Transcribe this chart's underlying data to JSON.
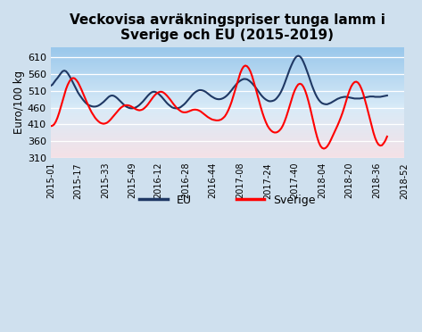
{
  "title": "Veckovisa avräkningspriser tunga lamm i\nSverige och EU (2015-2019)",
  "ylabel": "Euro/100 kg",
  "bg_color": "#cfe0ee",
  "ylim": [
    310,
    640
  ],
  "yticks": [
    310,
    360,
    410,
    460,
    510,
    560,
    610
  ],
  "xtick_labels": [
    "2015-01",
    "2015-17",
    "2015-33",
    "2015-49",
    "2016-12",
    "2016-28",
    "2016-44",
    "2017-08",
    "2017-24",
    "2017-40",
    "2018-04",
    "2018-20",
    "2018-36",
    "2018-52"
  ],
  "xtick_positions": [
    0,
    16,
    32,
    48,
    63,
    79,
    95,
    111,
    127,
    143,
    159,
    175,
    191,
    207
  ],
  "eu_color": "#1f3864",
  "sverige_color": "#ff0000",
  "legend_eu": "EU",
  "legend_sverige": "Sverige",
  "eu_values": [
    525,
    528,
    535,
    542,
    548,
    555,
    562,
    568,
    570,
    568,
    562,
    554,
    545,
    535,
    525,
    515,
    505,
    497,
    490,
    483,
    477,
    472,
    468,
    466,
    464,
    463,
    463,
    464,
    466,
    469,
    473,
    477,
    482,
    487,
    492,
    495,
    496,
    495,
    492,
    488,
    483,
    478,
    473,
    468,
    464,
    461,
    459,
    458,
    458,
    459,
    461,
    464,
    468,
    473,
    478,
    484,
    490,
    496,
    501,
    505,
    507,
    507,
    505,
    502,
    497,
    492,
    486,
    480,
    474,
    469,
    465,
    461,
    459,
    458,
    458,
    459,
    461,
    465,
    469,
    474,
    480,
    486,
    492,
    498,
    503,
    507,
    510,
    512,
    512,
    511,
    509,
    506,
    502,
    498,
    494,
    491,
    488,
    486,
    485,
    485,
    486,
    488,
    491,
    495,
    500,
    506,
    512,
    519,
    525,
    531,
    536,
    540,
    543,
    545,
    545,
    544,
    541,
    537,
    532,
    526,
    520,
    513,
    506,
    499,
    493,
    488,
    484,
    481,
    479,
    479,
    480,
    482,
    486,
    492,
    499,
    508,
    519,
    532,
    546,
    560,
    574,
    586,
    597,
    606,
    612,
    614,
    612,
    606,
    596,
    584,
    570,
    556,
    541,
    526,
    513,
    501,
    491,
    483,
    477,
    473,
    471,
    470,
    470,
    472,
    474,
    477,
    480,
    483,
    486,
    488,
    490,
    491,
    492,
    492,
    491,
    490,
    489,
    488,
    487,
    487,
    487,
    487,
    488,
    489,
    490,
    491,
    492,
    493,
    493,
    493,
    492,
    492,
    492,
    492,
    493,
    494,
    495,
    496
  ],
  "sv_values": [
    405,
    406,
    410,
    418,
    430,
    445,
    462,
    480,
    498,
    515,
    528,
    538,
    545,
    548,
    547,
    542,
    535,
    525,
    514,
    502,
    490,
    478,
    467,
    456,
    446,
    438,
    430,
    424,
    419,
    415,
    413,
    412,
    413,
    415,
    419,
    424,
    430,
    436,
    442,
    448,
    454,
    459,
    463,
    466,
    467,
    467,
    466,
    464,
    461,
    458,
    455,
    453,
    452,
    453,
    455,
    459,
    464,
    470,
    477,
    484,
    491,
    497,
    502,
    505,
    507,
    507,
    505,
    501,
    496,
    490,
    484,
    477,
    470,
    464,
    458,
    454,
    450,
    447,
    446,
    446,
    447,
    449,
    451,
    453,
    454,
    454,
    453,
    451,
    448,
    444,
    440,
    436,
    432,
    429,
    426,
    424,
    423,
    422,
    422,
    423,
    425,
    429,
    434,
    442,
    452,
    464,
    478,
    495,
    512,
    530,
    547,
    562,
    574,
    582,
    585,
    583,
    577,
    567,
    553,
    536,
    518,
    499,
    480,
    462,
    445,
    430,
    417,
    406,
    398,
    392,
    388,
    386,
    386,
    388,
    392,
    398,
    407,
    419,
    433,
    449,
    466,
    483,
    499,
    512,
    522,
    529,
    531,
    529,
    522,
    511,
    496,
    478,
    458,
    436,
    414,
    392,
    373,
    357,
    346,
    340,
    338,
    340,
    345,
    353,
    363,
    374,
    385,
    396,
    407,
    419,
    432,
    446,
    462,
    479,
    496,
    511,
    523,
    531,
    536,
    537,
    534,
    527,
    516,
    502,
    484,
    465,
    445,
    424,
    404,
    386,
    370,
    358,
    350,
    347,
    348,
    354,
    362,
    374
  ]
}
